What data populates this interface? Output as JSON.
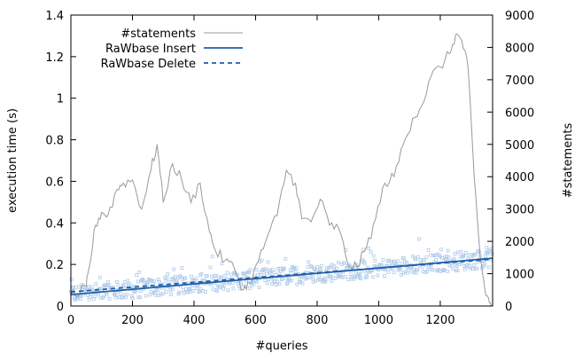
{
  "chart_data": {
    "type": "scatter",
    "xlabel": "#queries",
    "ylabel": "execution time (s)",
    "y2label": "#statements",
    "xlim": [
      0,
      1370
    ],
    "ylim": [
      0,
      1.4
    ],
    "y2lim": [
      0,
      9000
    ],
    "x_ticks": [
      0,
      200,
      400,
      600,
      800,
      1000,
      1200
    ],
    "y_ticks": [
      0,
      0.2,
      0.4,
      0.6,
      0.8,
      1,
      1.2,
      1.4
    ],
    "y_tick_labels": [
      "0",
      "0.2",
      "0.4",
      "0.6",
      "0.8",
      "1",
      "1.2",
      "1.4"
    ],
    "y2_ticks": [
      0,
      1000,
      2000,
      3000,
      4000,
      5000,
      6000,
      7000,
      8000,
      9000
    ],
    "legend_position": "top-left",
    "grid": false,
    "legend": [
      {
        "label": "#statements",
        "color": "#999999",
        "style": "solid"
      },
      {
        "label": "RaWbase Insert",
        "color": "#1f5fa8",
        "style": "solid"
      },
      {
        "label": "RaWbase Delete",
        "color": "#1f5fa8",
        "style": "dashed"
      }
    ],
    "series": [
      {
        "name": "#statements",
        "axis": "y2",
        "color": "#999999",
        "x": [
          0,
          30,
          50,
          60,
          80,
          100,
          120,
          150,
          170,
          200,
          230,
          260,
          280,
          300,
          330,
          360,
          390,
          420,
          450,
          470,
          500,
          530,
          560,
          580,
          610,
          640,
          670,
          700,
          730,
          750,
          780,
          810,
          840,
          870,
          900,
          930,
          960,
          990,
          1020,
          1050,
          1080,
          1110,
          1140,
          1170,
          1200,
          1230,
          1250,
          1270,
          1290,
          1310,
          1330,
          1345,
          1360,
          1370
        ],
        "values": [
          300,
          400,
          600,
          1200,
          2500,
          2900,
          2800,
          3600,
          3800,
          3900,
          3000,
          4200,
          5000,
          3200,
          4400,
          3900,
          3200,
          3800,
          2300,
          1700,
          1400,
          1200,
          500,
          700,
          1400,
          2200,
          2800,
          4200,
          3800,
          2700,
          2600,
          3300,
          2500,
          2400,
          1300,
          1200,
          1800,
          2700,
          3800,
          4000,
          5000,
          5800,
          6200,
          7100,
          7400,
          7800,
          8400,
          8200,
          7400,
          4000,
          1500,
          500,
          100,
          0
        ]
      },
      {
        "name": "RaWbase Insert",
        "axis": "y",
        "color": "#1f5fa8",
        "x": [
          0,
          1370
        ],
        "values": [
          0.055,
          0.23
        ]
      },
      {
        "name": "RaWbase Delete",
        "axis": "y",
        "color": "#1f5fa8",
        "x": [
          0,
          1370
        ],
        "values": [
          0.068,
          0.225
        ]
      },
      {
        "name": "per-query times",
        "axis": "y",
        "color": "#a9c4e6",
        "points": "scatter around trend, spread 0.04 to 0.30 s"
      }
    ]
  }
}
